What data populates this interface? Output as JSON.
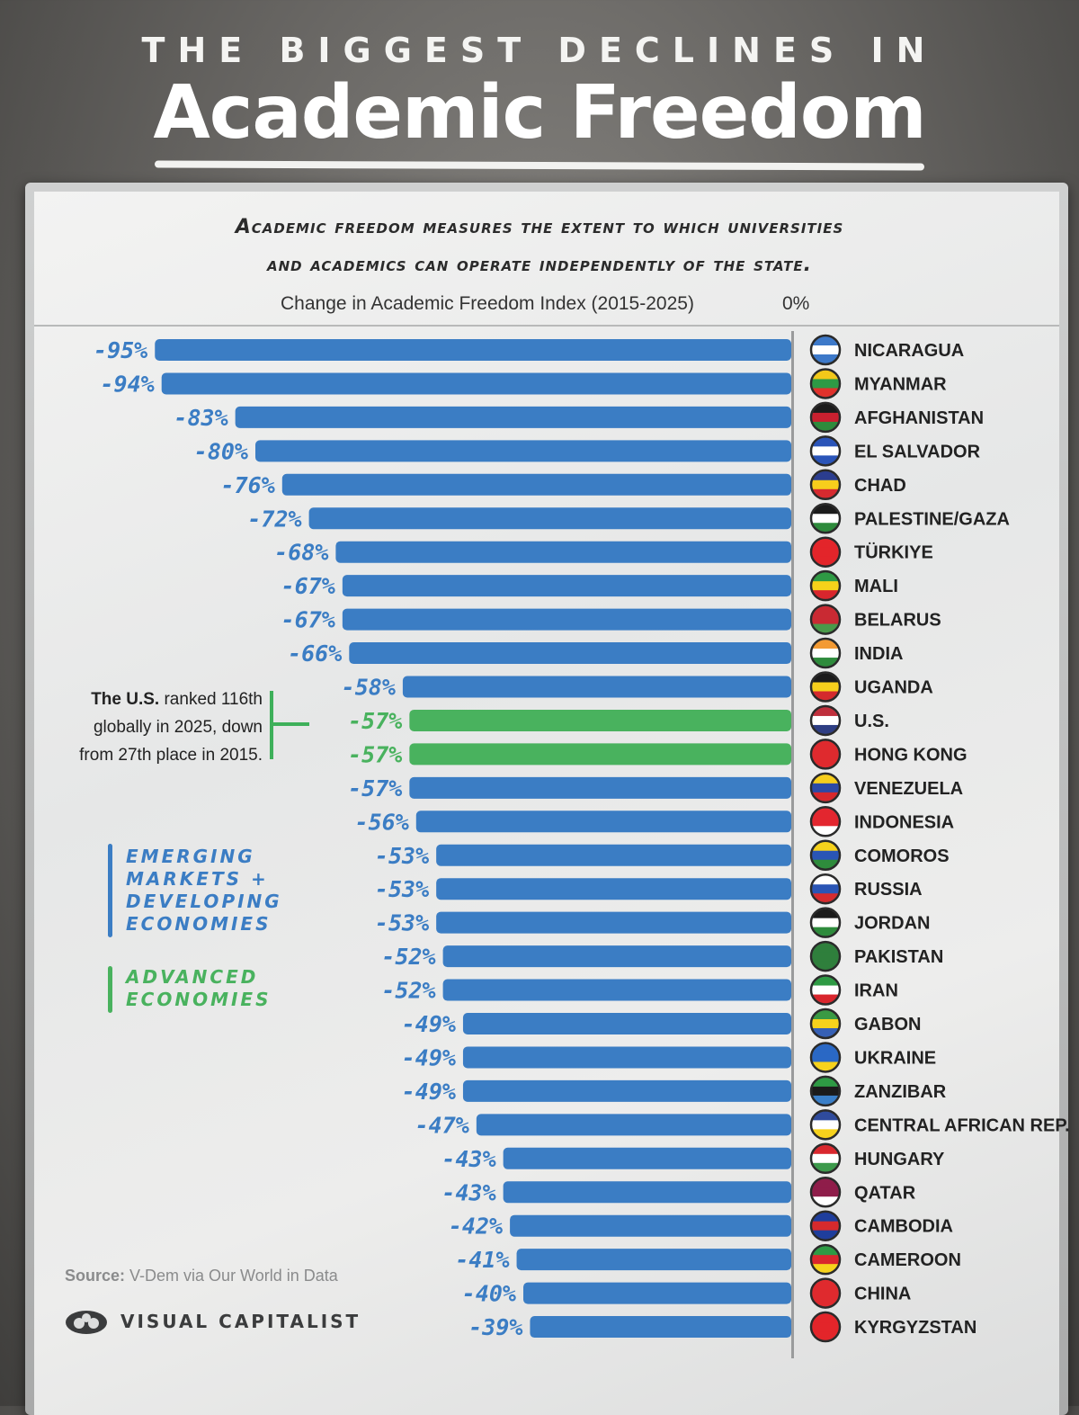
{
  "header": {
    "supertitle": "THE BIGGEST DECLINES IN",
    "title": "Academic Freedom",
    "subtitle_line1": "Academic freedom measures the extent to which universities",
    "subtitle_line2": "and academics can operate independently of the state."
  },
  "chart_data": {
    "type": "bar",
    "orientation": "horizontal",
    "axis_title": "Change in Academic Freedom Index (2015-2025)",
    "zero_label": "0%",
    "xlim": [
      -100,
      0
    ],
    "categories": [
      "NICARAGUA",
      "MYANMAR",
      "AFGHANISTAN",
      "EL SALVADOR",
      "CHAD",
      "PALESTINE/GAZA",
      "TÜRKIYE",
      "MALI",
      "BELARUS",
      "INDIA",
      "UGANDA",
      "U.S.",
      "HONG KONG",
      "VENEZUELA",
      "INDONESIA",
      "COMOROS",
      "RUSSIA",
      "JORDAN",
      "PAKISTAN",
      "IRAN",
      "GABON",
      "UKRAINE",
      "ZANZIBAR",
      "CENTRAL AFRICAN REP.",
      "HUNGARY",
      "QATAR",
      "CAMBODIA",
      "CAMEROON",
      "CHINA",
      "KYRGYZSTAN"
    ],
    "values": [
      -95,
      -94,
      -83,
      -80,
      -76,
      -72,
      -68,
      -67,
      -67,
      -66,
      -58,
      -57,
      -57,
      -57,
      -56,
      -53,
      -53,
      -53,
      -52,
      -52,
      -49,
      -49,
      -49,
      -47,
      -43,
      -43,
      -42,
      -41,
      -40,
      -39
    ],
    "value_labels": [
      "-95%",
      "-94%",
      "-83%",
      "-80%",
      "-76%",
      "-72%",
      "-68%",
      "-67%",
      "-67%",
      "-66%",
      "-58%",
      "-57%",
      "-57%",
      "-57%",
      "-56%",
      "-53%",
      "-53%",
      "-53%",
      "-52%",
      "-52%",
      "-49%",
      "-49%",
      "-49%",
      "-47%",
      "-43%",
      "-43%",
      "-42%",
      "-41%",
      "-40%",
      "-39%"
    ],
    "groups": [
      "emerging",
      "emerging",
      "emerging",
      "emerging",
      "emerging",
      "emerging",
      "emerging",
      "emerging",
      "emerging",
      "emerging",
      "emerging",
      "advanced",
      "advanced",
      "emerging",
      "emerging",
      "emerging",
      "emerging",
      "emerging",
      "emerging",
      "emerging",
      "emerging",
      "emerging",
      "emerging",
      "emerging",
      "emerging",
      "emerging",
      "emerging",
      "emerging",
      "emerging",
      "emerging"
    ],
    "colors": {
      "emerging": "#3b7dc4",
      "advanced": "#49b25e"
    },
    "flags": [
      [
        "#3d79c9",
        "#ffffff",
        "#3d79c9"
      ],
      [
        "#f2c81a",
        "#2d9a45",
        "#e0322c"
      ],
      [
        "#1b1b1b",
        "#c8202f",
        "#2e8b3c"
      ],
      [
        "#2a54b8",
        "#ffffff",
        "#2a54b8"
      ],
      [
        "#2b3d8f",
        "#f7ce1c",
        "#d62a2f"
      ],
      [
        "#1b1b1b",
        "#ffffff",
        "#2e8b3c"
      ],
      [
        "#e3252a",
        "#e3252a",
        "#e3252a"
      ],
      [
        "#2e9a44",
        "#f5d21a",
        "#d9262d"
      ],
      [
        "#c92a33",
        "#c92a33",
        "#4a9a4a"
      ],
      [
        "#f39a33",
        "#ffffff",
        "#2e8b3c"
      ],
      [
        "#1b1b1b",
        "#f6cf1c",
        "#d42a2d"
      ],
      [
        "#bf2f3c",
        "#ffffff",
        "#2e3e83"
      ],
      [
        "#df2a2e",
        "#df2a2e",
        "#df2a2e"
      ],
      [
        "#f6ce1c",
        "#2c4aa6",
        "#d8282d"
      ],
      [
        "#e3262f",
        "#e3262f",
        "#ffffff"
      ],
      [
        "#f6d21c",
        "#2a55b5",
        "#2e8b3c"
      ],
      [
        "#ffffff",
        "#2a55b5",
        "#d52b2e"
      ],
      [
        "#1b1b1b",
        "#ffffff",
        "#2e8b3c"
      ],
      [
        "#2f7f3c",
        "#2f7f3c",
        "#2f7f3c"
      ],
      [
        "#2e9a44",
        "#ffffff",
        "#d9262d"
      ],
      [
        "#3a9a44",
        "#f6d21c",
        "#3660b5"
      ],
      [
        "#2a68c5",
        "#2a68c5",
        "#f6d21c"
      ],
      [
        "#2e9a44",
        "#1b1b1b",
        "#3a7fc8"
      ],
      [
        "#2f4b9c",
        "#ffffff",
        "#f6d21c"
      ],
      [
        "#d9282e",
        "#ffffff",
        "#3d9a4c"
      ],
      [
        "#8f1d4a",
        "#8f1d4a",
        "#ffffff"
      ],
      [
        "#1f3e9c",
        "#d62a2d",
        "#1f3e9c"
      ],
      [
        "#2e9a44",
        "#d9262d",
        "#f6d21c"
      ],
      [
        "#df2a2e",
        "#df2a2e",
        "#df2a2e"
      ],
      [
        "#e3252a",
        "#e3252a",
        "#e3252a"
      ]
    ]
  },
  "annotation": {
    "bold": "The U.S.",
    "line1_rest": " ranked 116th",
    "line2": "globally in 2025, down",
    "line3": "from 27th place in 2015."
  },
  "legend": {
    "emerging_line1": "Emerging",
    "emerging_line2": "Markets +",
    "emerging_line3": "Developing",
    "emerging_line4": "Economies",
    "advanced_line1": "Advanced",
    "advanced_line2": "Economies"
  },
  "footer": {
    "source_label": "Source:",
    "source_text": " V-Dem via Our World in Data",
    "brand": "VISUAL CAPITALIST"
  }
}
